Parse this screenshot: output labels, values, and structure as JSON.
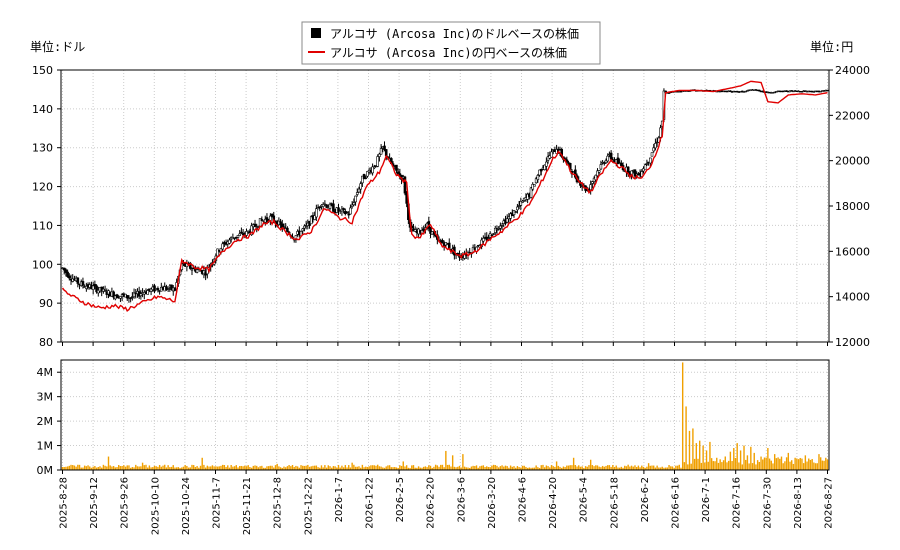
{
  "chart_data": [
    {
      "type": "candlestick+line",
      "title": "",
      "left_axis_label": "単位:ドル",
      "right_axis_label": "単位:円",
      "ylim_left": [
        80,
        150
      ],
      "ylim_right": [
        12000,
        24000
      ],
      "yticks_left": [
        "80",
        "90",
        "100",
        "110",
        "120",
        "130",
        "140",
        "150"
      ],
      "yticks_right": [
        "12000",
        "14000",
        "16000",
        "18000",
        "20000",
        "22000",
        "24000"
      ],
      "legend": {
        "placement": "top-center",
        "entries": [
          {
            "name": "アルコサ (Arcosa Inc)のドルベースの株価",
            "color": "#000000",
            "marker": "square"
          },
          {
            "name": "アルコサ (Arcosa Inc)の円ベースの株価",
            "color": "#e00000",
            "marker": "line"
          }
        ]
      },
      "x_ticks": [
        "2025-8-28",
        "2025-9-12",
        "2025-9-26",
        "2025-10-10",
        "2025-10-24",
        "2025-11-7",
        "2025-11-21",
        "2025-12-8",
        "2025-12-22",
        "2026-1-7",
        "2026-1-22",
        "2026-2-5",
        "2026-2-20",
        "2026-3-6",
        "2026-3-20",
        "2026-4-6",
        "2026-4-20",
        "2026-5-4",
        "2026-5-18",
        "2026-6-2",
        "2026-6-16",
        "2026-7-1",
        "2026-7-16",
        "2026-7-30",
        "2026-8-13",
        "2026-8-27"
      ],
      "grid": true,
      "usd_keypoints": [
        [
          0,
          99
        ],
        [
          4,
          97
        ],
        [
          10,
          95
        ],
        [
          18,
          94
        ],
        [
          24,
          93
        ],
        [
          32,
          92
        ],
        [
          40,
          91.5
        ],
        [
          48,
          93
        ],
        [
          58,
          94
        ],
        [
          66,
          93.5
        ],
        [
          70,
          100
        ],
        [
          76,
          99
        ],
        [
          84,
          98
        ],
        [
          92,
          104
        ],
        [
          100,
          107
        ],
        [
          108,
          108
        ],
        [
          116,
          111
        ],
        [
          122,
          112
        ],
        [
          128,
          110
        ],
        [
          136,
          107
        ],
        [
          144,
          110
        ],
        [
          152,
          116
        ],
        [
          160,
          114
        ],
        [
          168,
          113
        ],
        [
          176,
          122
        ],
        [
          184,
          126
        ],
        [
          188,
          130
        ],
        [
          194,
          125
        ],
        [
          200,
          122
        ],
        [
          204,
          109
        ],
        [
          208,
          108
        ],
        [
          214,
          110
        ],
        [
          220,
          106
        ],
        [
          226,
          105
        ],
        [
          232,
          102
        ],
        [
          238,
          103
        ],
        [
          244,
          105
        ],
        [
          250,
          107
        ],
        [
          256,
          110
        ],
        [
          262,
          112
        ],
        [
          268,
          115
        ],
        [
          274,
          118
        ],
        [
          280,
          124
        ],
        [
          286,
          128
        ],
        [
          290,
          130
        ],
        [
          296,
          126
        ],
        [
          302,
          122
        ],
        [
          308,
          119
        ],
        [
          314,
          124
        ],
        [
          320,
          128
        ],
        [
          326,
          126
        ],
        [
          332,
          124
        ],
        [
          338,
          123
        ],
        [
          344,
          127
        ],
        [
          350,
          133
        ],
        [
          352,
          137
        ],
        [
          353,
          144
        ],
        [
          360,
          144.5
        ],
        [
          370,
          144.8
        ],
        [
          380,
          144.6
        ],
        [
          390,
          144.5
        ],
        [
          400,
          144.4
        ],
        [
          405,
          145
        ],
        [
          410,
          144.6
        ],
        [
          414,
          144.2
        ],
        [
          420,
          144.5
        ],
        [
          430,
          144.6
        ],
        [
          444,
          144.5
        ],
        [
          449,
          144.8
        ]
      ],
      "jpy_keypoints": [
        [
          0,
          14300
        ],
        [
          6,
          14000
        ],
        [
          14,
          13700
        ],
        [
          22,
          13500
        ],
        [
          30,
          13600
        ],
        [
          38,
          13450
        ],
        [
          46,
          13700
        ],
        [
          56,
          14000
        ],
        [
          66,
          13800
        ],
        [
          70,
          15600
        ],
        [
          78,
          15300
        ],
        [
          86,
          15200
        ],
        [
          94,
          16000
        ],
        [
          102,
          16500
        ],
        [
          110,
          16700
        ],
        [
          118,
          17200
        ],
        [
          124,
          17300
        ],
        [
          130,
          16900
        ],
        [
          138,
          16500
        ],
        [
          146,
          16900
        ],
        [
          154,
          17900
        ],
        [
          162,
          17500
        ],
        [
          170,
          17300
        ],
        [
          178,
          18800
        ],
        [
          186,
          19500
        ],
        [
          190,
          20200
        ],
        [
          196,
          19400
        ],
        [
          202,
          19000
        ],
        [
          205,
          16700
        ],
        [
          210,
          16600
        ],
        [
          216,
          17200
        ],
        [
          222,
          16300
        ],
        [
          228,
          16000
        ],
        [
          234,
          15800
        ],
        [
          240,
          15900
        ],
        [
          246,
          16200
        ],
        [
          252,
          16600
        ],
        [
          258,
          16900
        ],
        [
          264,
          17300
        ],
        [
          270,
          17700
        ],
        [
          276,
          18300
        ],
        [
          282,
          19200
        ],
        [
          288,
          20100
        ],
        [
          292,
          20400
        ],
        [
          298,
          19600
        ],
        [
          304,
          19000
        ],
        [
          310,
          18600
        ],
        [
          316,
          19400
        ],
        [
          322,
          20000
        ],
        [
          328,
          19700
        ],
        [
          334,
          19300
        ],
        [
          340,
          19200
        ],
        [
          346,
          19900
        ],
        [
          352,
          21100
        ],
        [
          354,
          23000
        ],
        [
          362,
          23100
        ],
        [
          372,
          23100
        ],
        [
          382,
          23050
        ],
        [
          392,
          23200
        ],
        [
          398,
          23300
        ],
        [
          404,
          23500
        ],
        [
          410,
          23450
        ],
        [
          414,
          22600
        ],
        [
          420,
          22550
        ],
        [
          426,
          22900
        ],
        [
          434,
          22950
        ],
        [
          442,
          22900
        ],
        [
          449,
          23000
        ]
      ],
      "volume_panel": {
        "ylim": [
          0,
          4500000
        ],
        "yticks": [
          "0M",
          "1M",
          "2M",
          "3M",
          "4M"
        ],
        "color": "#f0a000",
        "baseline": 150000,
        "spikes": [
          [
            27,
            550000
          ],
          [
            47,
            300000
          ],
          [
            65,
            200000
          ],
          [
            82,
            500000
          ],
          [
            126,
            250000
          ],
          [
            170,
            300000
          ],
          [
            200,
            350000
          ],
          [
            225,
            780000
          ],
          [
            229,
            600000
          ],
          [
            235,
            650000
          ],
          [
            290,
            350000
          ],
          [
            300,
            500000
          ],
          [
            310,
            420000
          ],
          [
            344,
            280000
          ],
          [
            364,
            4400000
          ],
          [
            366,
            2600000
          ],
          [
            368,
            1600000
          ],
          [
            370,
            1700000
          ],
          [
            372,
            1100000
          ],
          [
            374,
            1200000
          ],
          [
            376,
            1000000
          ],
          [
            378,
            800000
          ],
          [
            380,
            1150000
          ],
          [
            384,
            500000
          ],
          [
            388,
            400000
          ],
          [
            392,
            750000
          ],
          [
            394,
            900000
          ],
          [
            396,
            1100000
          ],
          [
            398,
            800000
          ],
          [
            400,
            1000000
          ],
          [
            402,
            600000
          ],
          [
            404,
            950000
          ],
          [
            406,
            700000
          ],
          [
            410,
            550000
          ],
          [
            414,
            900000
          ],
          [
            418,
            650000
          ],
          [
            422,
            550000
          ],
          [
            426,
            700000
          ],
          [
            430,
            500000
          ],
          [
            436,
            600000
          ],
          [
            440,
            450000
          ],
          [
            444,
            650000
          ],
          [
            448,
            500000
          ]
        ]
      }
    }
  ]
}
